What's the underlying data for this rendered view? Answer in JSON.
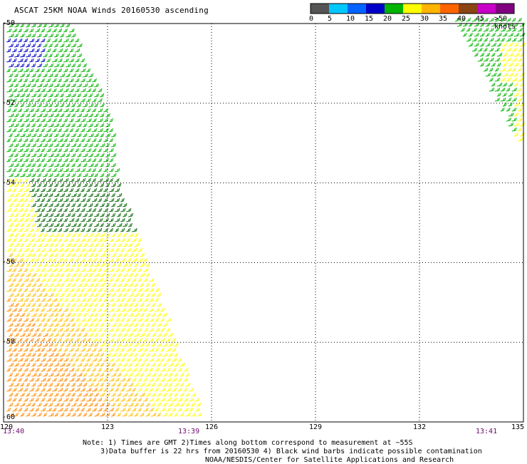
{
  "title": "ASCAT 25KM NOAA Winds 20160530 ascending",
  "legend": {
    "labels": [
      "0",
      "5",
      "10",
      "15",
      "20",
      "25",
      "30",
      "35",
      "40",
      "45",
      ">50 knots"
    ],
    "colors": [
      "#555555",
      "#00c8ff",
      "#0064ff",
      "#0000c8",
      "#00b400",
      "#ffff00",
      "#ffb400",
      "#ff6400",
      "#8b4513",
      "#c800c8",
      "#800080"
    ]
  },
  "axes": {
    "lon_labels": [
      "120",
      "123",
      "126",
      "129",
      "132",
      "135"
    ],
    "lat_labels": [
      "-50",
      "-52",
      "-54",
      "-56",
      "-58",
      "-60"
    ],
    "lon_range": [
      120,
      135
    ],
    "lat_range": [
      -50,
      -60
    ],
    "grid": "dotted"
  },
  "times": [
    "13:40",
    "13:39",
    "13:41"
  ],
  "notes": [
    "Note: 1) Times are GMT 2)Times along bottom correspond to measurement at ~55S",
    "3)Data buffer is 22 hrs from 20160530 4) Black wind barbs indicate possible contamination",
    "NOAA/NESDIS/Center for Satellite Applications and Research"
  ]
}
